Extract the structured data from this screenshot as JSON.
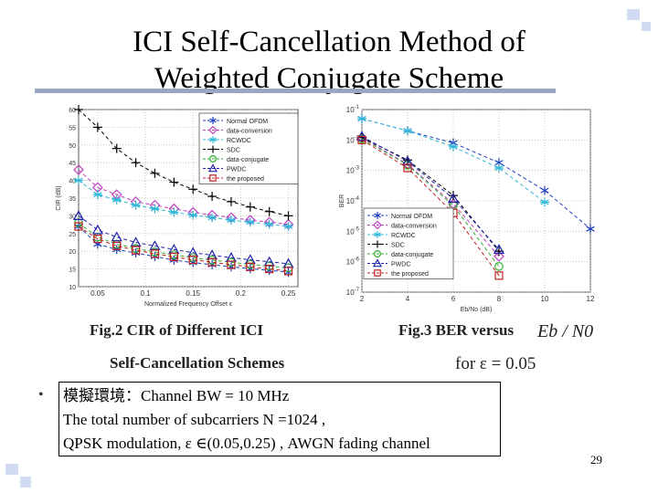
{
  "slide": {
    "title_line1": "ICI Self-Cancellation Method of",
    "title_line2": "Weighted Conjugate Scheme",
    "caption_left_line1": "Fig.2 CIR of Different ICI",
    "caption_left_line2": "Self-Cancellation Schemes",
    "caption_right_line1": "Fig.3 BER versus",
    "caption_right_math": "Eb / N0",
    "caption_right_line2": "for ε = 0.05",
    "bullet": "•",
    "sim_line1": "模擬環境：Channel BW = 10 MHz",
    "sim_line2": "The total number of subcarriers N =1024 ,",
    "sim_line3": "QPSK modulation, ε ∈(0.05,0.25) , AWGN fading channel",
    "page_number": "29"
  },
  "chart_data": [
    {
      "type": "line",
      "xlabel": "Normalized Frequency Offset ε",
      "ylabel": "CIR (dB)",
      "xlim": [
        0.03,
        0.26
      ],
      "ylim": [
        10,
        60
      ],
      "xticks": [
        0.05,
        0.1,
        0.15,
        0.2,
        0.25
      ],
      "xtick_labels": [
        "0.05",
        "0.1",
        "0.15",
        "0.2",
        "0.25"
      ],
      "yticks": [
        10,
        15,
        20,
        25,
        30,
        35,
        40,
        45,
        50,
        55,
        60
      ],
      "ytick_labels": [
        "10",
        "15",
        "20",
        "25",
        "30",
        "35",
        "40",
        "45",
        "50",
        "55",
        "60"
      ],
      "grid": true,
      "legend_position": "top-right",
      "x": [
        0.03,
        0.05,
        0.07,
        0.09,
        0.11,
        0.13,
        0.15,
        0.17,
        0.19,
        0.21,
        0.23,
        0.25
      ],
      "series": [
        {
          "name": "Normal OFDM",
          "marker": "asterisk",
          "color": "#1f3fbf",
          "values": [
            27,
            22,
            20.5,
            19.5,
            18.5,
            17.5,
            16.8,
            16.2,
            15.6,
            15.1,
            14.6,
            14.1
          ]
        },
        {
          "name": "data-conversion",
          "marker": "diamond",
          "color": "#c040c0",
          "values": [
            43,
            38,
            36,
            34,
            33,
            32,
            31,
            30.2,
            29.5,
            28.8,
            28.2,
            27.6
          ]
        },
        {
          "name": "RCWDC",
          "marker": "star",
          "color": "#30b8d8",
          "values": [
            40,
            36,
            34.5,
            33,
            32,
            31,
            30.2,
            29.5,
            28.8,
            28.2,
            27.6,
            27
          ]
        },
        {
          "name": "SDC",
          "marker": "plus",
          "color": "#000000",
          "values": [
            60,
            55,
            49,
            45,
            42,
            39.5,
            37.5,
            35.5,
            34,
            32.5,
            31.2,
            30
          ]
        },
        {
          "name": "data-conjugate",
          "marker": "circle",
          "color": "#30b030",
          "values": [
            28,
            24,
            22,
            20.8,
            19.8,
            19,
            18.2,
            17.5,
            16.9,
            16.3,
            15.8,
            15.3
          ]
        },
        {
          "name": "PWDC",
          "marker": "triangle",
          "color": "#2020b0",
          "values": [
            30,
            26,
            24,
            22.5,
            21.5,
            20.5,
            19.6,
            18.9,
            18.2,
            17.6,
            17,
            16.5
          ]
        },
        {
          "name": "the proposed",
          "marker": "square",
          "color": "#c02020",
          "values": [
            27,
            23.5,
            21.5,
            20.3,
            19.3,
            18.4,
            17.6,
            16.9,
            16.2,
            15.6,
            15,
            14.4
          ]
        }
      ]
    },
    {
      "type": "line",
      "xlabel": "Eb/No (dB)",
      "ylabel": "BER",
      "yscale": "log",
      "xlim": [
        2,
        12
      ],
      "ylim": [
        1e-07,
        0.1
      ],
      "xticks": [
        2,
        4,
        6,
        8,
        10,
        12
      ],
      "xtick_labels": [
        "2",
        "4",
        "6",
        "8",
        "10",
        "12"
      ],
      "ytick_labels": [
        "10^-7",
        "10^-6",
        "10^-5",
        "10^-4",
        "10^-3",
        "10^-2",
        "10^-1"
      ],
      "grid": true,
      "legend_position": "bottom-left",
      "series": [
        {
          "name": "Normal OFDM",
          "marker": "asterisk",
          "color": "#1f3fbf",
          "x": [
            2,
            4,
            6,
            8,
            10,
            12
          ],
          "values": [
            0.05,
            0.02,
            0.008,
            0.0018,
            0.00022,
            1.2e-05
          ]
        },
        {
          "name": "data-conversion",
          "marker": "diamond",
          "color": "#c040c0",
          "x": [
            2,
            4,
            6,
            8
          ],
          "values": [
            0.012,
            0.0016,
            8e-05,
            1.5e-06
          ]
        },
        {
          "name": "RCWDC",
          "marker": "star",
          "color": "#30b8d8",
          "x": [
            2,
            4,
            6,
            8,
            10
          ],
          "values": [
            0.05,
            0.02,
            0.006,
            0.0012,
            9e-05
          ]
        },
        {
          "name": "SDC",
          "marker": "plus",
          "color": "#000000",
          "x": [
            2,
            4,
            6,
            8
          ],
          "values": [
            0.012,
            0.0022,
            0.00015,
            2.2e-06
          ]
        },
        {
          "name": "data-conjugate",
          "marker": "circle",
          "color": "#30b030",
          "x": [
            2,
            4,
            6,
            8
          ],
          "values": [
            0.011,
            0.0015,
            7e-05,
            7e-07
          ]
        },
        {
          "name": "PWDC",
          "marker": "triangle",
          "color": "#2020b0",
          "x": [
            2,
            4,
            6,
            8
          ],
          "values": [
            0.013,
            0.002,
            0.00012,
            2.5e-06
          ]
        },
        {
          "name": "the proposed",
          "marker": "square",
          "color": "#c02020",
          "x": [
            2,
            4,
            6,
            8
          ],
          "values": [
            0.01,
            0.0012,
            4e-05,
            3.5e-07
          ]
        }
      ]
    }
  ]
}
